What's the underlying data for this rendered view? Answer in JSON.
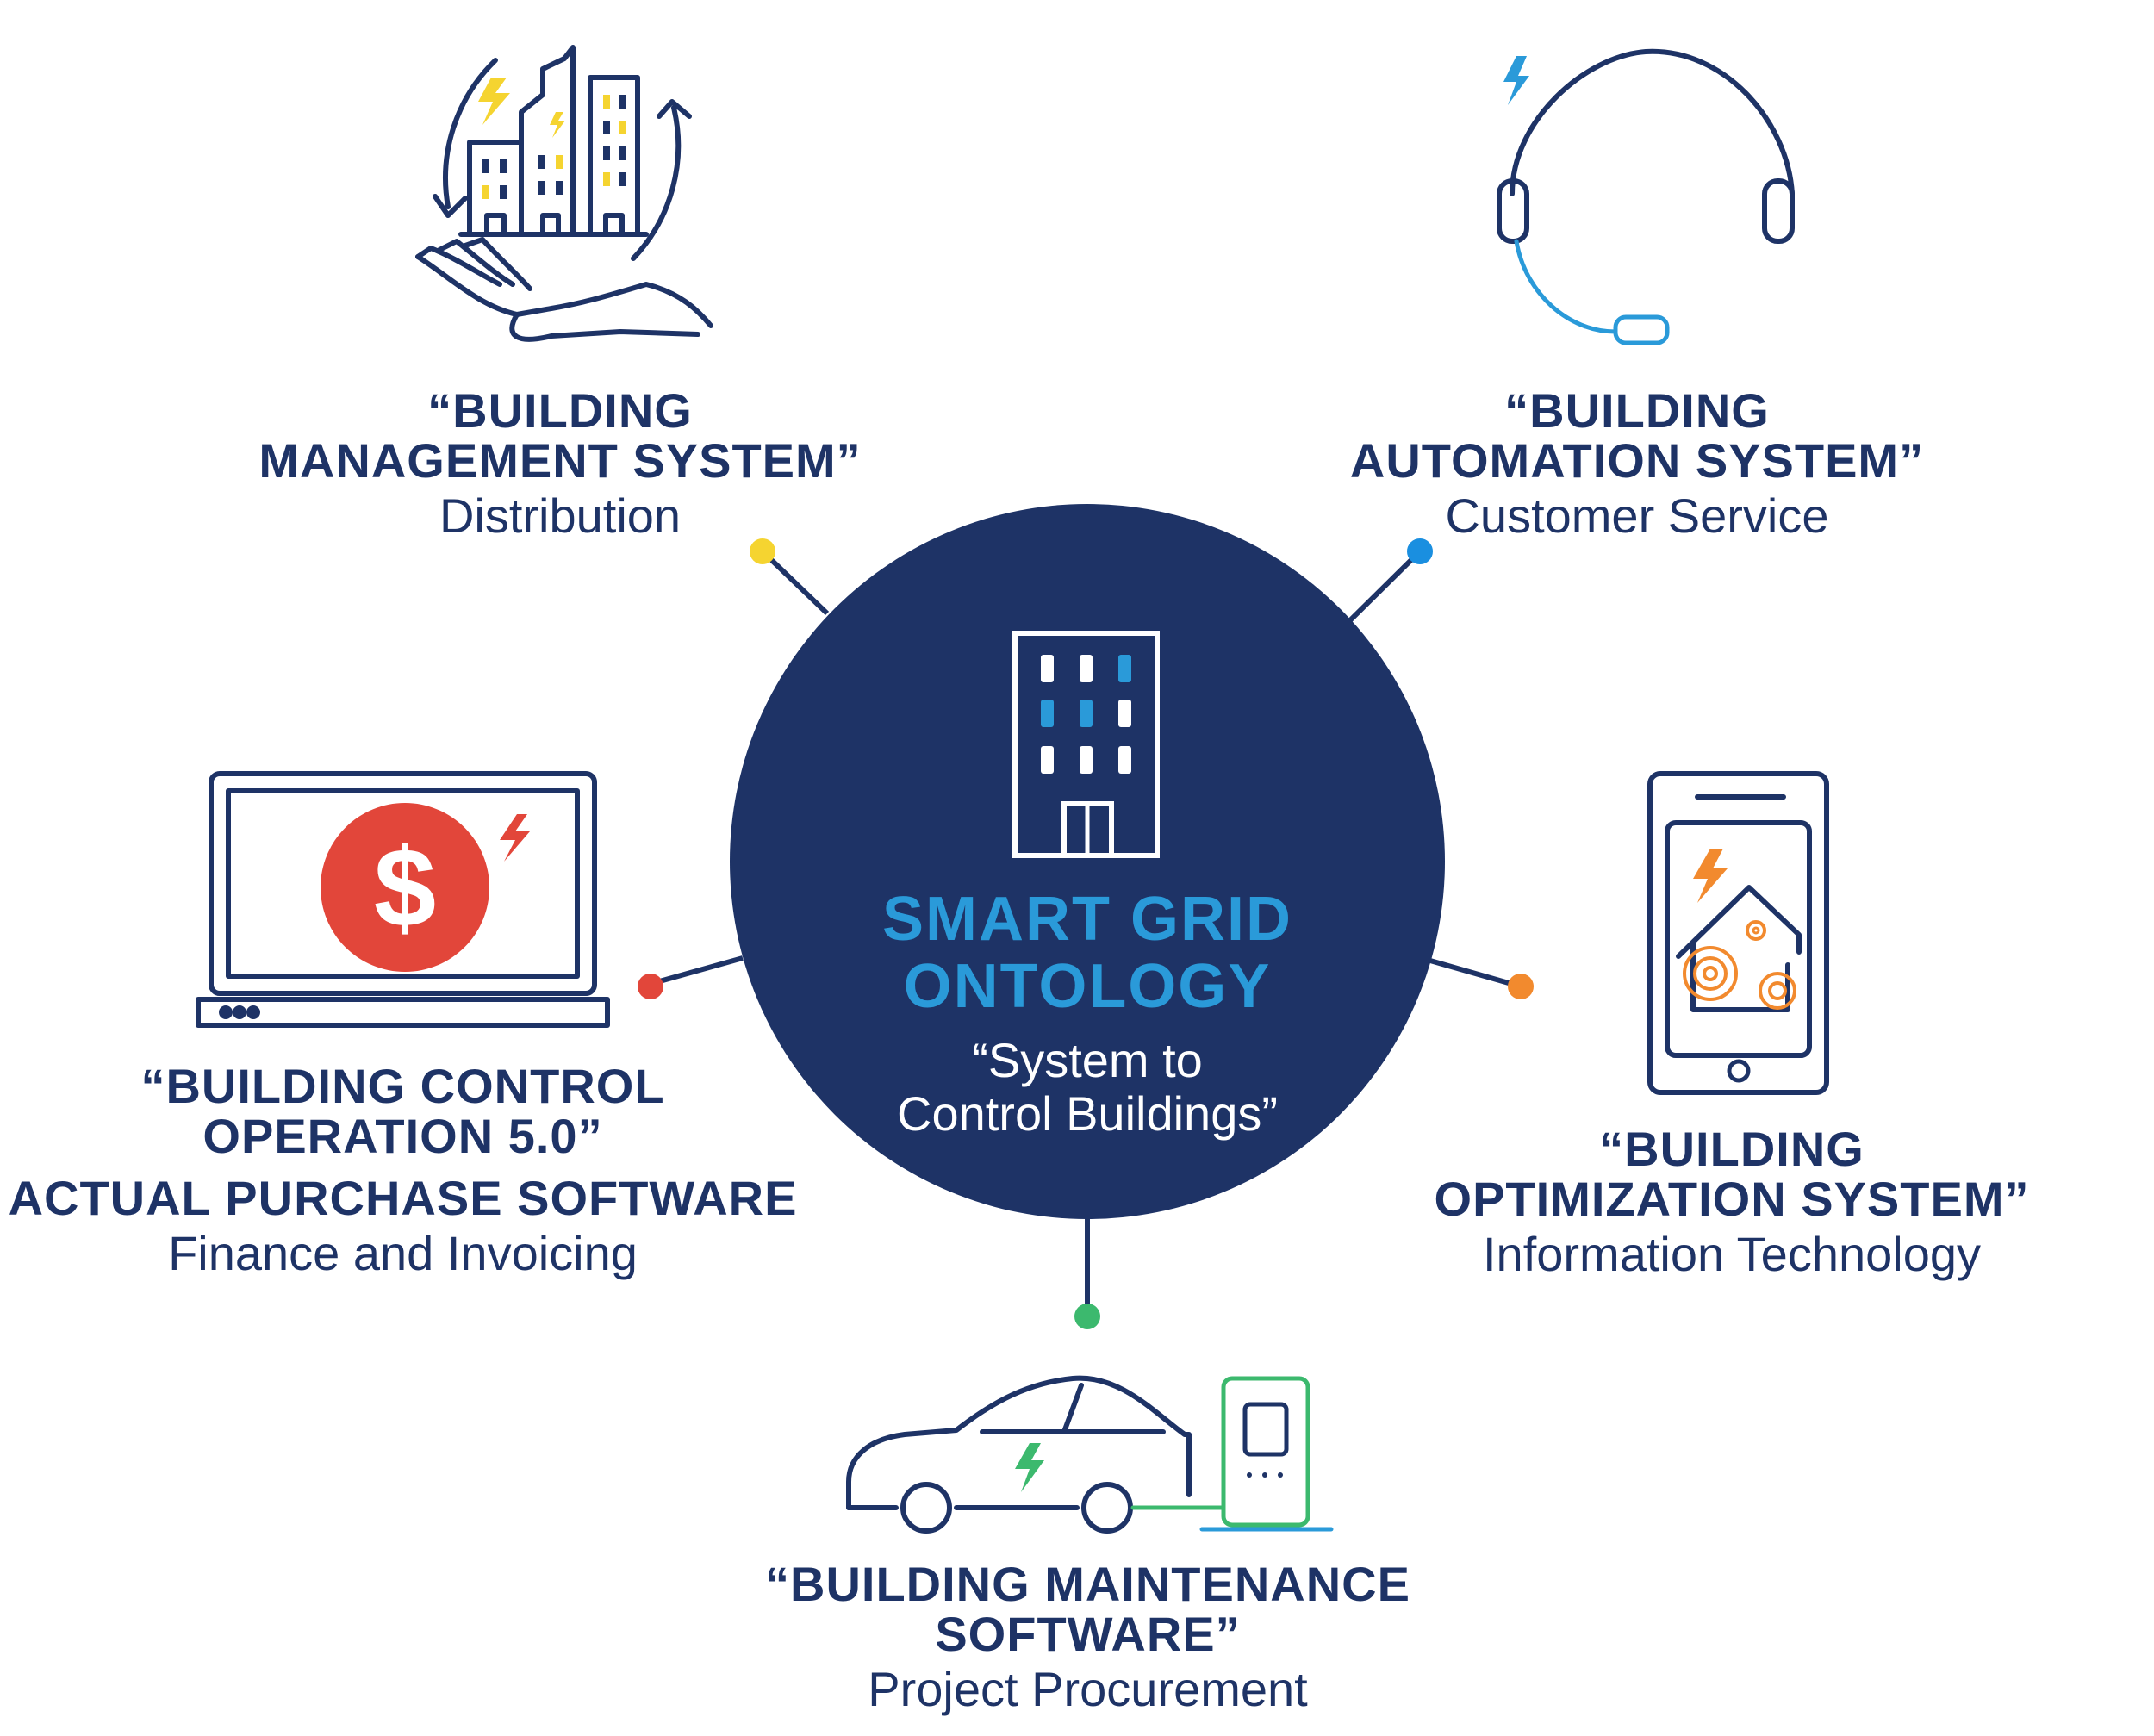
{
  "center": {
    "title_line1": "SMART GRID",
    "title_line2": "ONTOLOGY",
    "subtitle_line1": "“System to",
    "subtitle_line2": "Control Buildings”"
  },
  "nodes": {
    "management": {
      "title_line1": "“BUILDING",
      "title_line2": "MANAGEMENT SYSTEM”",
      "subtitle": "Distribution",
      "dot_color": "#f5d430"
    },
    "automation": {
      "title_line1": "“BUILDING",
      "title_line2": "AUTOMATION SYSTEM”",
      "subtitle": "Customer Service",
      "dot_color": "#1a8fe0"
    },
    "control": {
      "title_line1": "“BUILDING CONTROL",
      "title_line2": "OPERATION 5.0”",
      "title_line3": "ACTUAL PURCHASE SOFTWARE",
      "subtitle": "Finance and Invoicing",
      "dot_color": "#e2463a"
    },
    "optimization": {
      "title_line1": "“BUILDING",
      "title_line2": "OPTIMIZATION SYSTEM”",
      "subtitle": "Information Technology",
      "dot_color": "#f28a2e"
    },
    "maintenance": {
      "title_line1": "“BUILDING MAINTENANCE",
      "title_line2": "SOFTWARE”",
      "subtitle": "Project Procurement",
      "dot_color": "#3cb96e"
    }
  },
  "colors": {
    "navy": "#1e3366",
    "blue": "#2a9ad9",
    "yellow": "#f5d430",
    "red": "#e2463a",
    "orange": "#f28a2e",
    "green": "#3cb96e"
  },
  "icons": [
    "building-hand-icon",
    "headset-icon",
    "laptop-dollar-icon",
    "smartphone-home-icon",
    "electric-car-charger-icon",
    "office-building-icon"
  ]
}
